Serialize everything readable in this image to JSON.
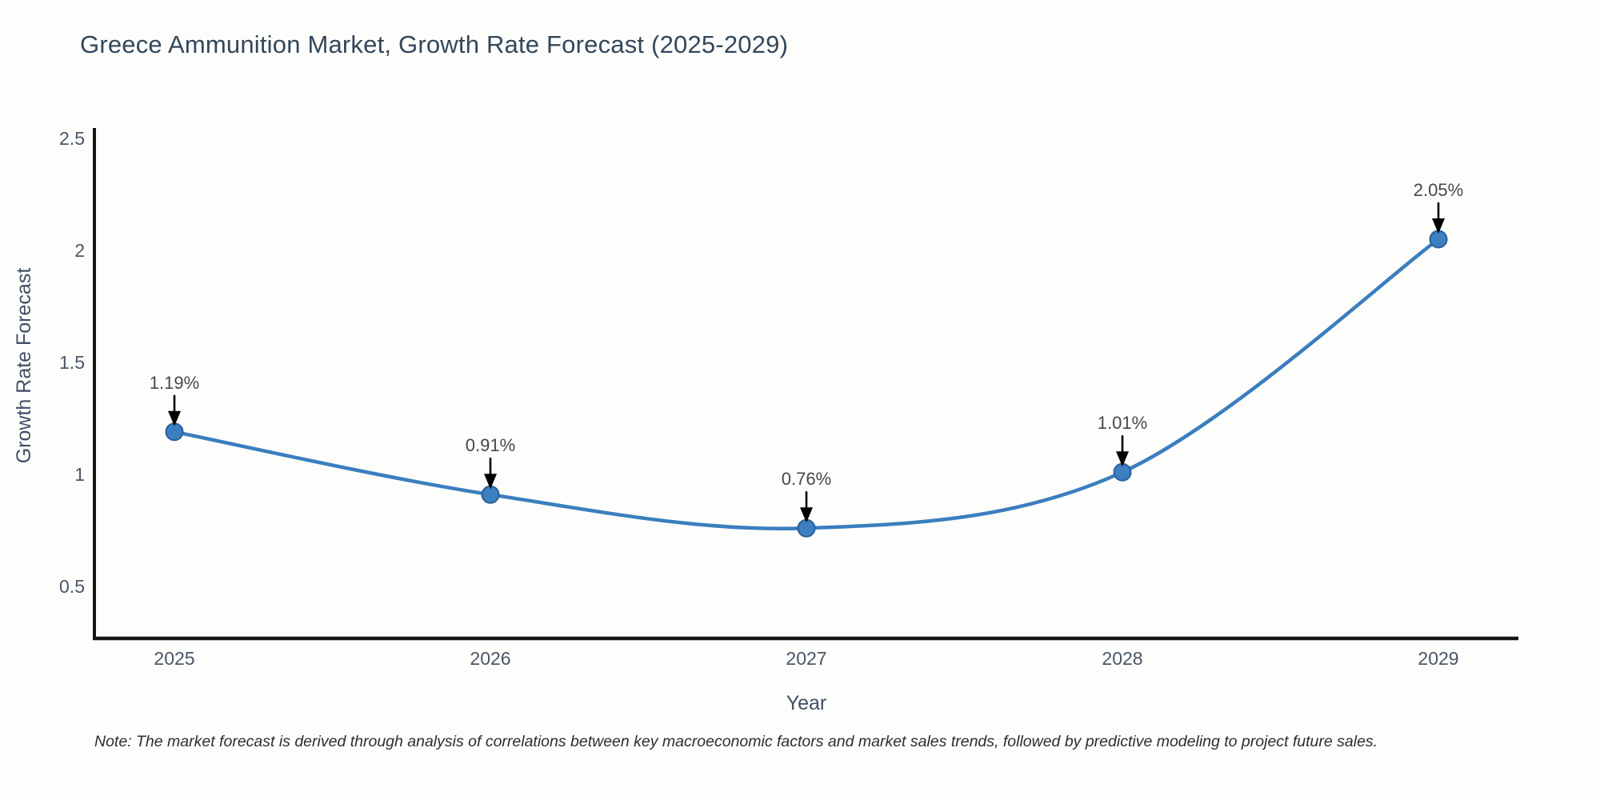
{
  "page": {
    "note": "Note: The market forecast is derived through analysis of correlations between key macroeconomic factors and market sales trends, followed by predictive modeling to project future sales."
  },
  "chart_data": {
    "type": "line",
    "title": "Greece Ammunition Market, Growth Rate Forecast (2025-2029)",
    "xlabel": "Year",
    "ylabel": "Growth Rate Forecast",
    "categories": [
      "2025",
      "2026",
      "2027",
      "2028",
      "2029"
    ],
    "values": [
      1.19,
      0.91,
      0.76,
      1.01,
      2.05
    ],
    "point_labels": [
      "1.19%",
      "0.91%",
      "0.76%",
      "1.01%",
      "2.05%"
    ],
    "yticks": [
      0.5,
      1,
      1.5,
      2,
      2.5
    ],
    "ylim": [
      0.27,
      2.55
    ],
    "grid": false,
    "legend": "none",
    "line_shape": "spline",
    "marker": "circle",
    "annotation_style": "label-with-down-arrow",
    "colors": {
      "line": "#3a7ebf",
      "marker_fill": "#3c80c2",
      "marker_stroke": "#2a6099",
      "axis_spine": "#151515",
      "arrow": "#000000",
      "title_text": "#33475b",
      "tick_text": "#4a5666",
      "annotation_text": "#474747",
      "note_text": "#2e2e2e",
      "background": "#fdfdfb"
    }
  }
}
